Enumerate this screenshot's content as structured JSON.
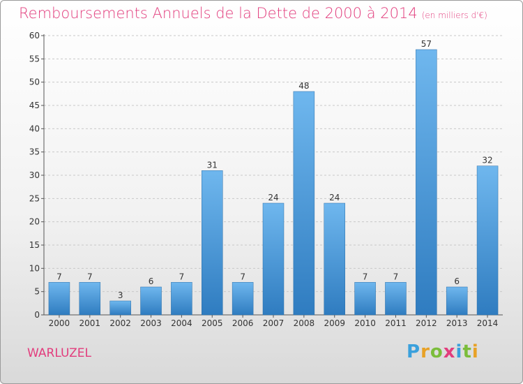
{
  "header": {
    "title": "Remboursements Annuels de la Dette de 2000 à 2014",
    "unit": "(en milliers d'€)"
  },
  "footer": {
    "commune": "WARLUZEL",
    "logo": "Proxiti"
  },
  "colors": {
    "bar_light": "#6fb7ee",
    "bar_dark": "#2f7cc0",
    "title": "#e23d7d"
  },
  "chart_data": {
    "type": "bar",
    "title": "Remboursements Annuels de la Dette de 2000 à 2014",
    "xlabel": "",
    "ylabel": "",
    "categories": [
      "2000",
      "2001",
      "2002",
      "2003",
      "2004",
      "2005",
      "2006",
      "2007",
      "2008",
      "2009",
      "2010",
      "2011",
      "2012",
      "2013",
      "2014"
    ],
    "values": [
      7,
      7,
      3,
      6,
      7,
      31,
      7,
      24,
      48,
      24,
      7,
      7,
      57,
      6,
      32
    ],
    "ylim": [
      0,
      60
    ],
    "yticks": [
      0,
      5,
      10,
      15,
      20,
      25,
      30,
      35,
      40,
      45,
      50,
      55,
      60
    ],
    "grid": true,
    "data_labels": true
  }
}
